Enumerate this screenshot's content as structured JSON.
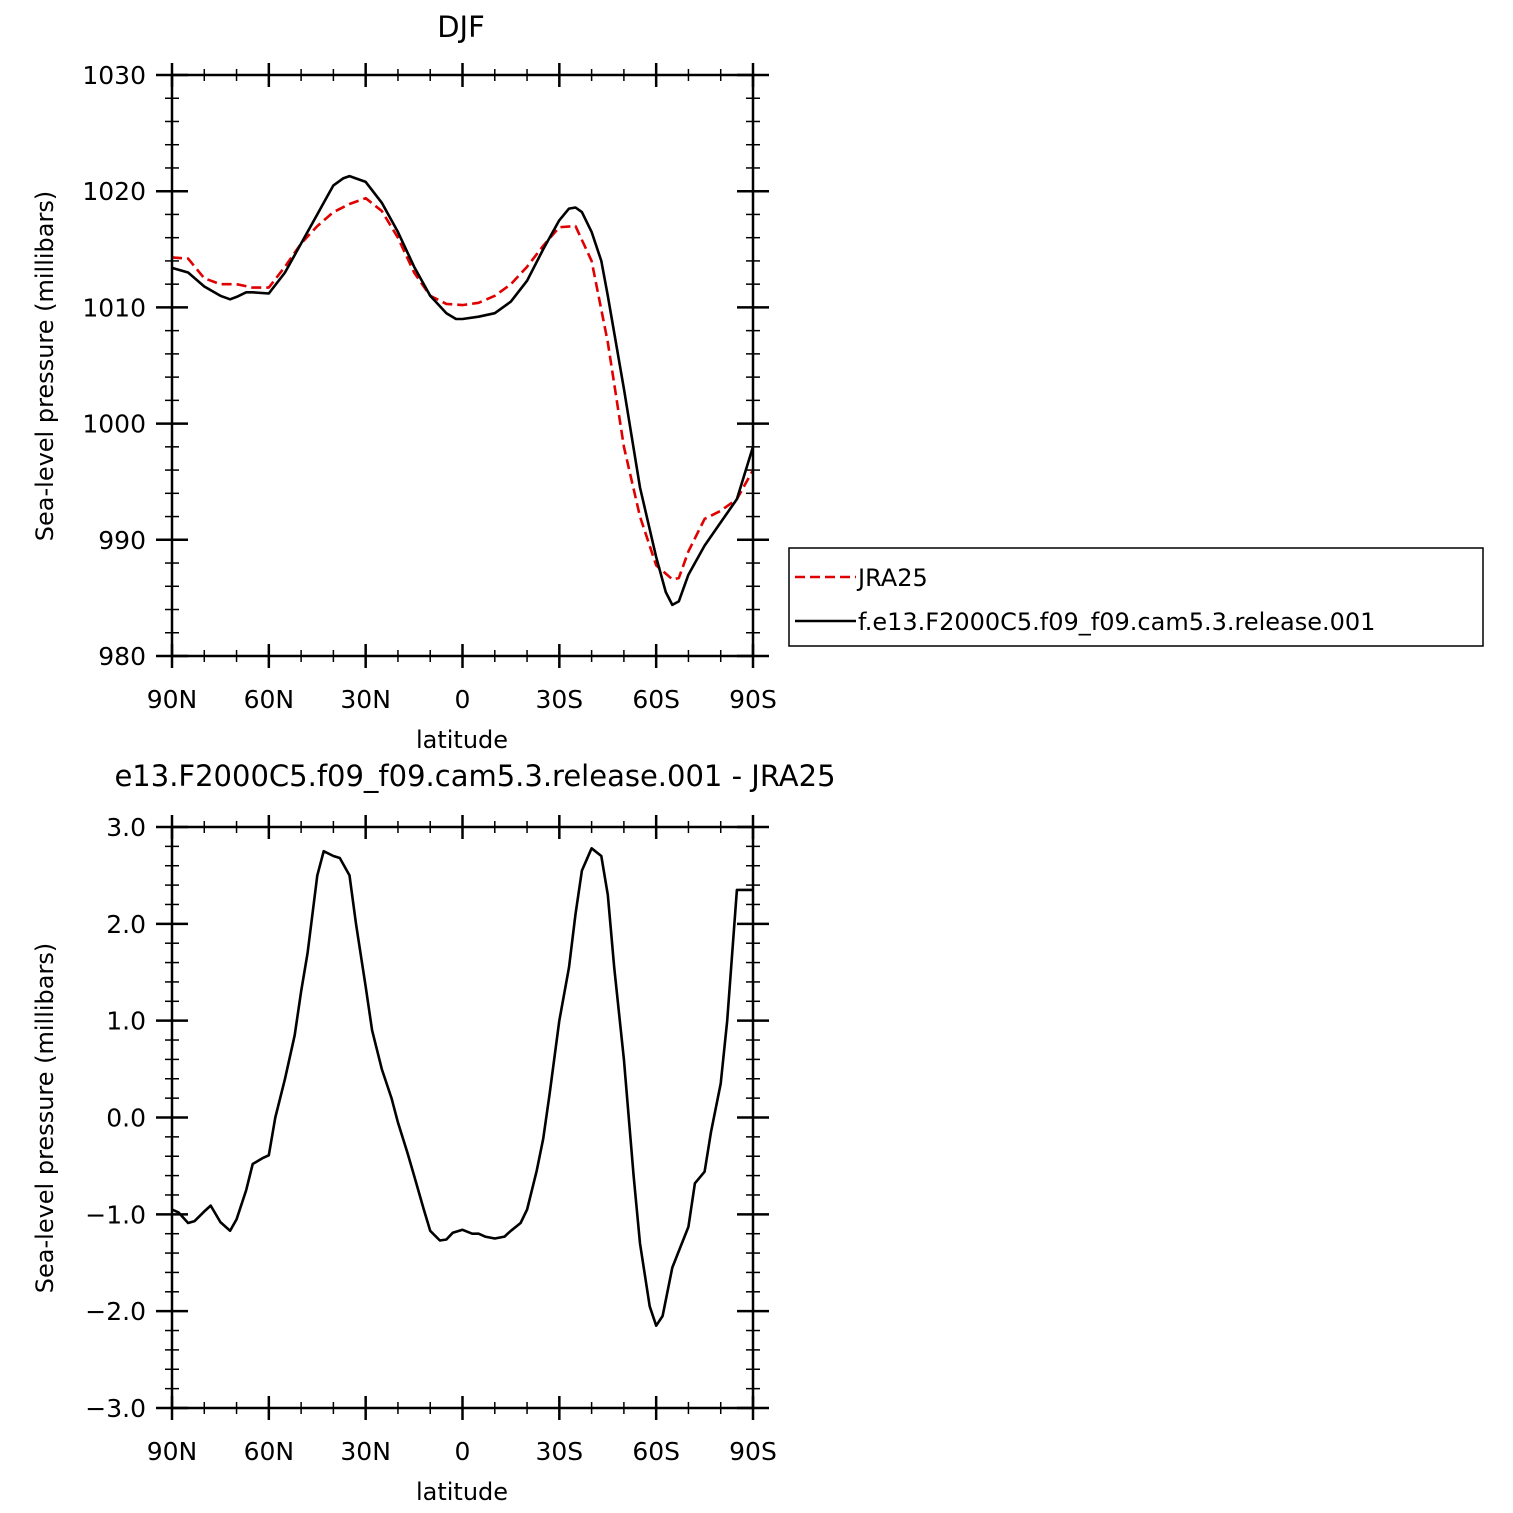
{
  "chart_data": [
    {
      "type": "line",
      "title": "DJF",
      "xlabel": "latitude",
      "ylabel": "Sea-level pressure (millibars)",
      "xlim": [
        -90,
        90
      ],
      "ylim": [
        980,
        1030
      ],
      "x_direction": "north-to-south",
      "xticks": [
        -90,
        -60,
        -30,
        0,
        30,
        60,
        90
      ],
      "xtick_labels": [
        "90N",
        "60N",
        "30N",
        "0",
        "30S",
        "60S",
        "90S"
      ],
      "yticks": [
        980,
        990,
        1000,
        1010,
        1020,
        1030
      ],
      "ytick_labels": [
        "980",
        "990",
        "1000",
        "1010",
        "1020",
        "1030"
      ],
      "legend_position": "right",
      "grid": false,
      "series": [
        {
          "name": "JRA25",
          "color": "#e00000",
          "dash": "dashed",
          "x": [
            -90,
            -85,
            -80,
            -75,
            -70,
            -65,
            -60,
            -55,
            -50,
            -45,
            -40,
            -35,
            -30,
            -25,
            -20,
            -15,
            -10,
            -5,
            0,
            5,
            10,
            15,
            20,
            25,
            30,
            35,
            40,
            45,
            50,
            55,
            60,
            65,
            67,
            70,
            75,
            80,
            85,
            90
          ],
          "y": [
            1014.3,
            1014.2,
            1012.5,
            1012.0,
            1012.0,
            1011.7,
            1011.7,
            1013.5,
            1015.5,
            1017.0,
            1018.2,
            1018.9,
            1019.4,
            1018.3,
            1016.0,
            1013.0,
            1011.0,
            1010.3,
            1010.2,
            1010.4,
            1011.0,
            1012.0,
            1013.5,
            1015.3,
            1016.9,
            1017.0,
            1014.0,
            1007.0,
            998.0,
            992.0,
            987.8,
            986.6,
            986.7,
            989.0,
            991.8,
            992.5,
            993.5,
            996.0
          ]
        },
        {
          "name": "f.e13.F2000C5.f09_f09.cam5.3.release.001",
          "color": "#000000",
          "dash": "solid",
          "x": [
            -90,
            -85,
            -80,
            -75,
            -72,
            -70,
            -67,
            -65,
            -60,
            -55,
            -50,
            -45,
            -42,
            -40,
            -37,
            -35,
            -30,
            -25,
            -20,
            -15,
            -10,
            -5,
            -2,
            0,
            5,
            10,
            15,
            20,
            25,
            30,
            33,
            35,
            37,
            40,
            43,
            45,
            50,
            55,
            60,
            63,
            65,
            67,
            70,
            75,
            80,
            85,
            90
          ],
          "y": [
            1013.4,
            1013.0,
            1011.8,
            1011.0,
            1010.7,
            1010.9,
            1011.3,
            1011.3,
            1011.2,
            1013.0,
            1015.5,
            1018.0,
            1019.5,
            1020.5,
            1021.1,
            1021.3,
            1020.8,
            1019.0,
            1016.5,
            1013.5,
            1011.0,
            1009.5,
            1009.0,
            1009.0,
            1009.2,
            1009.5,
            1010.5,
            1012.3,
            1015.0,
            1017.5,
            1018.5,
            1018.6,
            1018.2,
            1016.5,
            1014.0,
            1011.0,
            1003.0,
            994.5,
            988.5,
            985.5,
            984.4,
            984.7,
            987.0,
            989.5,
            991.5,
            993.5,
            998.0
          ]
        }
      ]
    },
    {
      "type": "line",
      "title": "e13.F2000C5.f09_f09.cam5.3.release.001 - JRA25",
      "xlabel": "latitude",
      "ylabel": "Sea-level pressure (millibars)",
      "xlim": [
        -90,
        90
      ],
      "ylim": [
        -3,
        3
      ],
      "x_direction": "north-to-south",
      "xticks": [
        -90,
        -60,
        -30,
        0,
        30,
        60,
        90
      ],
      "xtick_labels": [
        "90N",
        "60N",
        "30N",
        "0",
        "30S",
        "60S",
        "90S"
      ],
      "yticks": [
        -3,
        -2,
        -1,
        0,
        1,
        2,
        3
      ],
      "ytick_labels": [
        "−3.0",
        "−2.0",
        "−1.0",
        "0.0",
        "1.0",
        "2.0",
        "3.0"
      ],
      "grid": false,
      "series": [
        {
          "color": "#000000",
          "dash": "solid",
          "x": [
            -90,
            -88,
            -85,
            -83,
            -80,
            -78,
            -75,
            -72,
            -70,
            -67,
            -65,
            -62,
            -60,
            -58,
            -55,
            -52,
            -50,
            -48,
            -45,
            -43,
            -40,
            -38,
            -35,
            -33,
            -30,
            -28,
            -25,
            -22,
            -20,
            -17,
            -15,
            -12,
            -10,
            -7,
            -5,
            -3,
            0,
            3,
            5,
            7,
            10,
            13,
            15,
            18,
            20,
            23,
            25,
            27,
            30,
            33,
            35,
            37,
            40,
            43,
            45,
            47,
            50,
            53,
            55,
            58,
            60,
            62,
            65,
            67,
            70,
            72,
            75,
            77,
            80,
            82,
            85,
            87,
            90
          ],
          "y": [
            -0.95,
            -0.98,
            -1.09,
            -1.07,
            -0.97,
            -0.91,
            -1.08,
            -1.17,
            -1.05,
            -0.75,
            -0.48,
            -0.42,
            -0.39,
            0.0,
            0.4,
            0.85,
            1.3,
            1.7,
            2.5,
            2.75,
            2.7,
            2.68,
            2.5,
            2.0,
            1.35,
            0.9,
            0.5,
            0.2,
            -0.05,
            -0.37,
            -0.6,
            -0.95,
            -1.17,
            -1.27,
            -1.26,
            -1.19,
            -1.16,
            -1.2,
            -1.2,
            -1.23,
            -1.25,
            -1.23,
            -1.17,
            -1.09,
            -0.95,
            -0.55,
            -0.22,
            0.25,
            1.0,
            1.55,
            2.1,
            2.55,
            2.78,
            2.7,
            2.3,
            1.55,
            0.6,
            -0.6,
            -1.3,
            -1.95,
            -2.15,
            -2.05,
            -1.55,
            -1.38,
            -1.13,
            -0.68,
            -0.56,
            -0.15,
            0.35,
            1.0,
            2.35,
            2.35,
            2.35
          ]
        }
      ]
    }
  ]
}
